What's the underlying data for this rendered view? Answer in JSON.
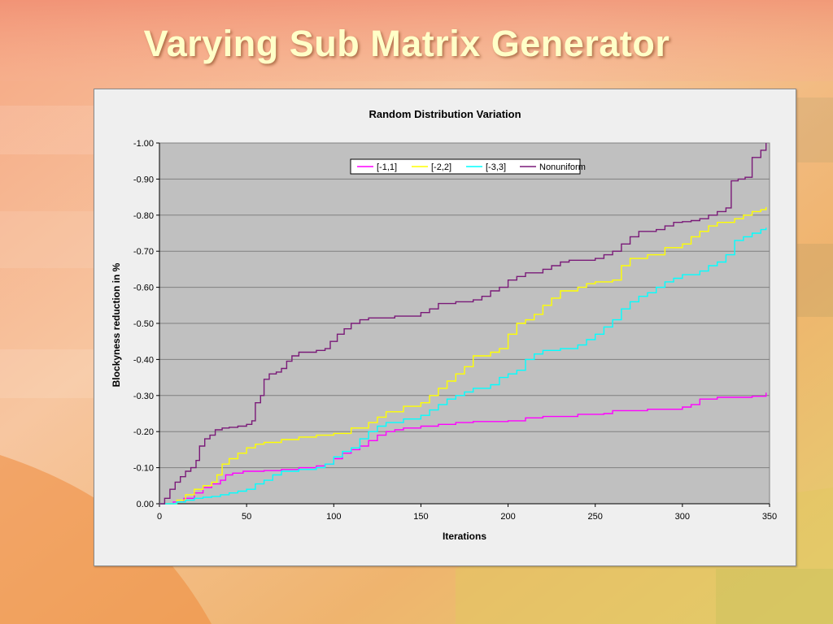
{
  "slide": {
    "title": "Varying Sub Matrix Generator"
  },
  "colors": {
    "plot_bg": "#c0c0c0",
    "gridline": "#808080"
  },
  "chart_data": {
    "type": "line",
    "title": "Random Distribution Variation",
    "xlabel": "Iterations",
    "ylabel": "Blockyness reduction in %",
    "xlim": [
      0,
      350
    ],
    "ylim": [
      0.0,
      -1.0
    ],
    "x_ticks": [
      0,
      50,
      100,
      150,
      200,
      250,
      300,
      350
    ],
    "x_tick_labels": [
      "0",
      "50",
      "100",
      "150",
      "200",
      "250",
      "300",
      "350"
    ],
    "y_ticks": [
      0,
      -0.1,
      -0.2,
      -0.3,
      -0.4,
      -0.5,
      -0.6,
      -0.7,
      -0.8,
      -0.9,
      -1.0
    ],
    "y_tick_labels": [
      "0.00",
      "-0.10",
      "-0.20",
      "-0.30",
      "-0.40",
      "-0.50",
      "-0.60",
      "-0.70",
      "-0.80",
      "-0.90",
      "-1.00"
    ],
    "grid": true,
    "legend_position": "top-center",
    "series": [
      {
        "name": "[-1,1]",
        "color": "#ff00ff",
        "points": [
          [
            0,
            0
          ],
          [
            8,
            -0.005
          ],
          [
            14,
            -0.015
          ],
          [
            20,
            -0.03
          ],
          [
            25,
            -0.045
          ],
          [
            30,
            -0.055
          ],
          [
            35,
            -0.065
          ],
          [
            38,
            -0.08
          ],
          [
            42,
            -0.085
          ],
          [
            48,
            -0.09
          ],
          [
            60,
            -0.092
          ],
          [
            70,
            -0.095
          ],
          [
            80,
            -0.1
          ],
          [
            90,
            -0.105
          ],
          [
            95,
            -0.11
          ],
          [
            100,
            -0.125
          ],
          [
            105,
            -0.14
          ],
          [
            110,
            -0.15
          ],
          [
            115,
            -0.16
          ],
          [
            120,
            -0.175
          ],
          [
            125,
            -0.19
          ],
          [
            130,
            -0.2
          ],
          [
            135,
            -0.205
          ],
          [
            140,
            -0.21
          ],
          [
            150,
            -0.215
          ],
          [
            160,
            -0.22
          ],
          [
            170,
            -0.225
          ],
          [
            180,
            -0.228
          ],
          [
            200,
            -0.23
          ],
          [
            210,
            -0.238
          ],
          [
            220,
            -0.242
          ],
          [
            240,
            -0.248
          ],
          [
            255,
            -0.25
          ],
          [
            260,
            -0.258
          ],
          [
            280,
            -0.262
          ],
          [
            300,
            -0.268
          ],
          [
            305,
            -0.275
          ],
          [
            310,
            -0.29
          ],
          [
            320,
            -0.295
          ],
          [
            340,
            -0.298
          ],
          [
            348,
            -0.308
          ]
        ]
      },
      {
        "name": "[-2,2]",
        "color": "#ffff00",
        "points": [
          [
            0,
            0
          ],
          [
            10,
            -0.01
          ],
          [
            15,
            -0.025
          ],
          [
            20,
            -0.04
          ],
          [
            25,
            -0.05
          ],
          [
            30,
            -0.06
          ],
          [
            33,
            -0.08
          ],
          [
            36,
            -0.11
          ],
          [
            40,
            -0.125
          ],
          [
            45,
            -0.14
          ],
          [
            50,
            -0.155
          ],
          [
            55,
            -0.165
          ],
          [
            60,
            -0.17
          ],
          [
            70,
            -0.178
          ],
          [
            80,
            -0.185
          ],
          [
            90,
            -0.19
          ],
          [
            100,
            -0.195
          ],
          [
            110,
            -0.21
          ],
          [
            120,
            -0.225
          ],
          [
            125,
            -0.24
          ],
          [
            130,
            -0.255
          ],
          [
            140,
            -0.27
          ],
          [
            150,
            -0.28
          ],
          [
            155,
            -0.3
          ],
          [
            160,
            -0.32
          ],
          [
            165,
            -0.34
          ],
          [
            170,
            -0.36
          ],
          [
            175,
            -0.38
          ],
          [
            180,
            -0.41
          ],
          [
            190,
            -0.42
          ],
          [
            195,
            -0.43
          ],
          [
            200,
            -0.47
          ],
          [
            205,
            -0.5
          ],
          [
            210,
            -0.51
          ],
          [
            215,
            -0.525
          ],
          [
            220,
            -0.55
          ],
          [
            225,
            -0.57
          ],
          [
            230,
            -0.59
          ],
          [
            240,
            -0.6
          ],
          [
            245,
            -0.61
          ],
          [
            250,
            -0.615
          ],
          [
            260,
            -0.62
          ],
          [
            265,
            -0.66
          ],
          [
            270,
            -0.68
          ],
          [
            280,
            -0.69
          ],
          [
            290,
            -0.71
          ],
          [
            300,
            -0.72
          ],
          [
            305,
            -0.74
          ],
          [
            310,
            -0.755
          ],
          [
            315,
            -0.77
          ],
          [
            320,
            -0.78
          ],
          [
            330,
            -0.79
          ],
          [
            335,
            -0.8
          ],
          [
            340,
            -0.81
          ],
          [
            345,
            -0.815
          ],
          [
            348,
            -0.822
          ]
        ]
      },
      {
        "name": "[-3,3]",
        "color": "#00ffff",
        "points": [
          [
            0,
            0
          ],
          [
            10,
            -0.005
          ],
          [
            15,
            -0.01
          ],
          [
            20,
            -0.015
          ],
          [
            25,
            -0.018
          ],
          [
            30,
            -0.02
          ],
          [
            35,
            -0.025
          ],
          [
            40,
            -0.03
          ],
          [
            45,
            -0.035
          ],
          [
            50,
            -0.04
          ],
          [
            55,
            -0.055
          ],
          [
            60,
            -0.065
          ],
          [
            65,
            -0.08
          ],
          [
            70,
            -0.09
          ],
          [
            80,
            -0.095
          ],
          [
            90,
            -0.1
          ],
          [
            95,
            -0.11
          ],
          [
            100,
            -0.13
          ],
          [
            105,
            -0.145
          ],
          [
            110,
            -0.155
          ],
          [
            115,
            -0.18
          ],
          [
            120,
            -0.2
          ],
          [
            125,
            -0.215
          ],
          [
            130,
            -0.225
          ],
          [
            140,
            -0.235
          ],
          [
            150,
            -0.245
          ],
          [
            155,
            -0.26
          ],
          [
            160,
            -0.275
          ],
          [
            165,
            -0.29
          ],
          [
            170,
            -0.3
          ],
          [
            175,
            -0.31
          ],
          [
            180,
            -0.32
          ],
          [
            190,
            -0.33
          ],
          [
            195,
            -0.35
          ],
          [
            200,
            -0.36
          ],
          [
            205,
            -0.37
          ],
          [
            210,
            -0.4
          ],
          [
            215,
            -0.415
          ],
          [
            220,
            -0.425
          ],
          [
            230,
            -0.43
          ],
          [
            240,
            -0.44
          ],
          [
            245,
            -0.455
          ],
          [
            250,
            -0.47
          ],
          [
            255,
            -0.49
          ],
          [
            260,
            -0.51
          ],
          [
            265,
            -0.54
          ],
          [
            270,
            -0.56
          ],
          [
            275,
            -0.575
          ],
          [
            280,
            -0.585
          ],
          [
            285,
            -0.6
          ],
          [
            290,
            -0.615
          ],
          [
            295,
            -0.625
          ],
          [
            300,
            -0.635
          ],
          [
            310,
            -0.645
          ],
          [
            315,
            -0.66
          ],
          [
            320,
            -0.67
          ],
          [
            325,
            -0.69
          ],
          [
            330,
            -0.73
          ],
          [
            335,
            -0.74
          ],
          [
            340,
            -0.75
          ],
          [
            345,
            -0.76
          ],
          [
            348,
            -0.765
          ]
        ]
      },
      {
        "name": "Nonuniform",
        "color": "#7a1a78",
        "points": [
          [
            0,
            0
          ],
          [
            3,
            -0.015
          ],
          [
            6,
            -0.04
          ],
          [
            9,
            -0.06
          ],
          [
            12,
            -0.075
          ],
          [
            15,
            -0.09
          ],
          [
            18,
            -0.1
          ],
          [
            21,
            -0.12
          ],
          [
            23,
            -0.16
          ],
          [
            26,
            -0.18
          ],
          [
            29,
            -0.19
          ],
          [
            32,
            -0.205
          ],
          [
            36,
            -0.21
          ],
          [
            40,
            -0.212
          ],
          [
            45,
            -0.215
          ],
          [
            50,
            -0.22
          ],
          [
            53,
            -0.23
          ],
          [
            55,
            -0.28
          ],
          [
            58,
            -0.3
          ],
          [
            60,
            -0.345
          ],
          [
            63,
            -0.36
          ],
          [
            67,
            -0.365
          ],
          [
            70,
            -0.375
          ],
          [
            73,
            -0.395
          ],
          [
            76,
            -0.41
          ],
          [
            80,
            -0.42
          ],
          [
            90,
            -0.425
          ],
          [
            95,
            -0.43
          ],
          [
            98,
            -0.45
          ],
          [
            102,
            -0.47
          ],
          [
            106,
            -0.485
          ],
          [
            110,
            -0.5
          ],
          [
            115,
            -0.51
          ],
          [
            120,
            -0.515
          ],
          [
            135,
            -0.52
          ],
          [
            150,
            -0.53
          ],
          [
            155,
            -0.54
          ],
          [
            160,
            -0.555
          ],
          [
            170,
            -0.56
          ],
          [
            180,
            -0.565
          ],
          [
            185,
            -0.575
          ],
          [
            190,
            -0.59
          ],
          [
            195,
            -0.6
          ],
          [
            200,
            -0.62
          ],
          [
            205,
            -0.63
          ],
          [
            210,
            -0.64
          ],
          [
            220,
            -0.65
          ],
          [
            225,
            -0.66
          ],
          [
            230,
            -0.67
          ],
          [
            235,
            -0.675
          ],
          [
            250,
            -0.68
          ],
          [
            255,
            -0.69
          ],
          [
            260,
            -0.7
          ],
          [
            265,
            -0.72
          ],
          [
            270,
            -0.74
          ],
          [
            275,
            -0.755
          ],
          [
            285,
            -0.76
          ],
          [
            290,
            -0.77
          ],
          [
            295,
            -0.78
          ],
          [
            300,
            -0.782
          ],
          [
            305,
            -0.785
          ],
          [
            310,
            -0.79
          ],
          [
            315,
            -0.8
          ],
          [
            320,
            -0.81
          ],
          [
            325,
            -0.82
          ],
          [
            328,
            -0.895
          ],
          [
            332,
            -0.9
          ],
          [
            336,
            -0.905
          ],
          [
            340,
            -0.96
          ],
          [
            345,
            -0.98
          ],
          [
            348,
            -1.0
          ]
        ]
      }
    ]
  }
}
